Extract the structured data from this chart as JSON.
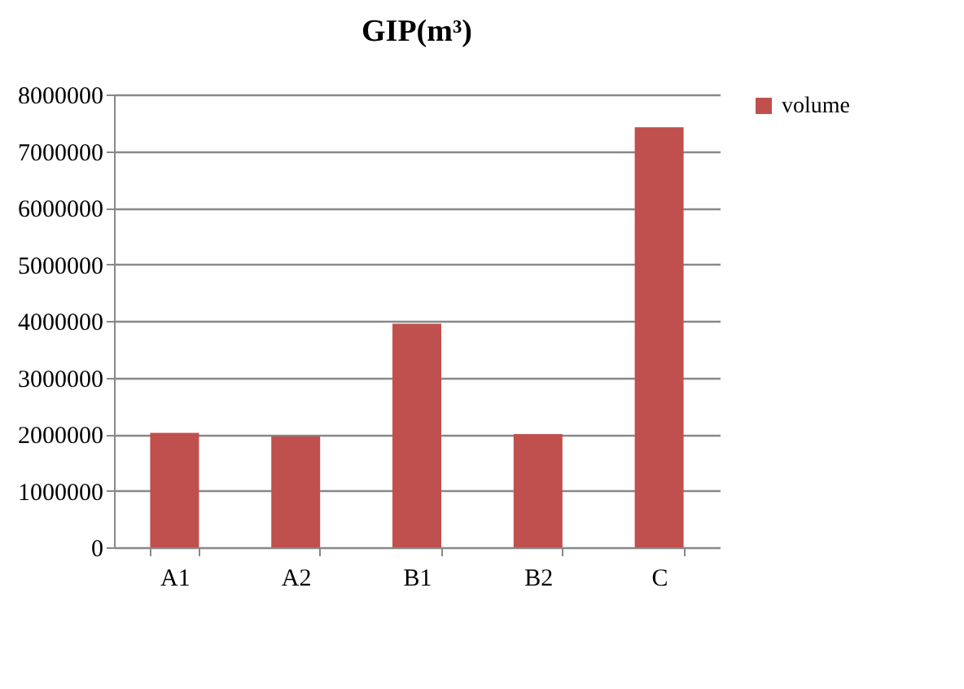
{
  "chart_data": {
    "type": "bar",
    "title": "GIP(m³)",
    "categories": [
      "A1",
      "A2",
      "B1",
      "B2",
      "C"
    ],
    "series": [
      {
        "name": "volume",
        "color": "#c0504d",
        "values": [
          2020000,
          1960000,
          3950000,
          2000000,
          7420000
        ]
      }
    ],
    "ylim": [
      0,
      8000000
    ],
    "yticks": [
      0,
      1000000,
      2000000,
      3000000,
      4000000,
      5000000,
      6000000,
      7000000,
      8000000
    ],
    "grid": "y",
    "legend": "right"
  }
}
